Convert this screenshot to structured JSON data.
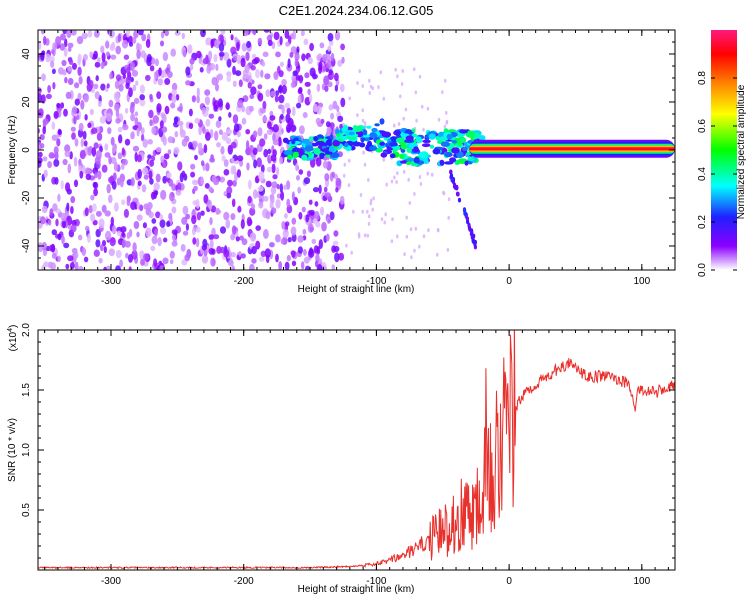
{
  "title": "C2E1.2024.234.06.12.G05",
  "colors": {
    "axis": "#000000",
    "snr_line": "#e8302c",
    "background": "#ffffff"
  },
  "chart_data": [
    {
      "type": "heatmap",
      "xlabel": "Height of straight line (km)",
      "ylabel": "Frequency (Hz)",
      "xlim": [
        -355,
        125
      ],
      "ylim": [
        -50,
        50
      ],
      "xticks": [
        -300,
        -200,
        -100,
        0,
        100
      ],
      "yticks": [
        -40,
        -20,
        0,
        20,
        40
      ],
      "colorbar": {
        "label": "Normalized spectral amplitude",
        "range": [
          0,
          1
        ],
        "ticks": [
          0.0,
          0.2,
          0.4,
          0.6,
          0.8
        ],
        "colormap": [
          "#ffffff",
          "#8b00ff",
          "#2020ff",
          "#00ffff",
          "#00ff00",
          "#ffff00",
          "#ff8000",
          "#ff0000",
          "#ff1a80"
        ]
      },
      "features": [
        {
          "name": "noise-scatter",
          "x_range": [
            -355,
            -125
          ],
          "freq_range": [
            -50,
            50
          ],
          "amplitude": 0.15
        },
        {
          "name": "onset-band",
          "x_range": [
            -170,
            -20
          ],
          "freq_range": [
            -5,
            10
          ],
          "amplitude": 0.35
        },
        {
          "name": "steady-line",
          "x_range": [
            -30,
            125
          ],
          "freq": 0.5,
          "amplitude": 0.95
        },
        {
          "name": "descending-branch",
          "x_range": [
            -45,
            -25
          ],
          "freq_range": [
            -40,
            -8
          ],
          "amplitude": 0.25
        }
      ]
    },
    {
      "type": "line",
      "xlabel": "Height of straight line (km)",
      "ylabel": "SNR (10 * v/v)",
      "multiplier": "(x10",
      "multiplier_exp": "4",
      "multiplier_close": ")",
      "xlim": [
        -355,
        125
      ],
      "ylim": [
        0,
        2.0
      ],
      "xticks": [
        -300,
        -200,
        -100,
        0,
        100
      ],
      "yticks": [
        0.5,
        1.0,
        1.5,
        2.0
      ],
      "ytick_labels": [
        "0.5",
        "1.0",
        "1.5",
        "2.0"
      ],
      "series": [
        {
          "x": [
            -355,
            -300,
            -250,
            -200,
            -150,
            -120,
            -100,
            -90,
            -80,
            -70,
            -60,
            -50,
            -45,
            -40,
            -35,
            -30,
            -25,
            -20,
            -17,
            -15,
            -10,
            -5,
            0,
            5,
            10,
            20,
            30,
            40,
            45,
            50,
            60,
            70,
            80,
            90,
            95,
            97,
            100,
            110,
            120,
            125
          ],
          "values": [
            0.02,
            0.02,
            0.02,
            0.02,
            0.02,
            0.03,
            0.05,
            0.08,
            0.12,
            0.18,
            0.25,
            0.32,
            0.38,
            0.42,
            0.47,
            0.5,
            0.55,
            0.65,
            2.0,
            0.8,
            1.0,
            1.1,
            1.2,
            1.35,
            1.45,
            1.55,
            1.62,
            1.7,
            1.72,
            1.68,
            1.6,
            1.62,
            1.6,
            1.55,
            1.35,
            1.5,
            1.5,
            1.48,
            1.52,
            1.55
          ]
        }
      ]
    }
  ]
}
